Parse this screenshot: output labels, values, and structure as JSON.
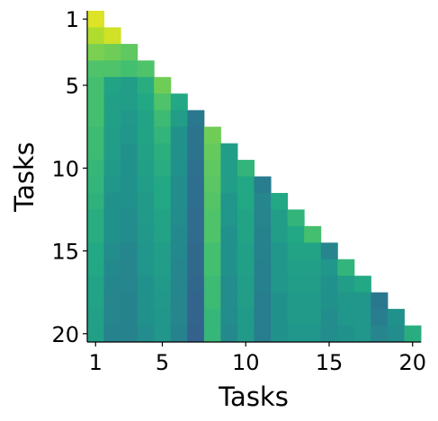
{
  "chart_data": {
    "type": "heatmap",
    "colormap": "viridis",
    "zlim": [
      0,
      1
    ],
    "x_label": "Tasks",
    "y_label": "Tasks",
    "x_categories": [
      1,
      null,
      null,
      null,
      5,
      null,
      null,
      null,
      null,
      10,
      null,
      null,
      null,
      null,
      15,
      null,
      null,
      null,
      null,
      20
    ],
    "y_categories": [
      1,
      null,
      null,
      null,
      5,
      null,
      null,
      null,
      null,
      10,
      null,
      null,
      null,
      null,
      15,
      null,
      null,
      null,
      null,
      20
    ],
    "values": [
      [
        0.95,
        null,
        null,
        null,
        null,
        null,
        null,
        null,
        null,
        null,
        null,
        null,
        null,
        null,
        null,
        null,
        null,
        null,
        null,
        null
      ],
      [
        0.88,
        0.93,
        null,
        null,
        null,
        null,
        null,
        null,
        null,
        null,
        null,
        null,
        null,
        null,
        null,
        null,
        null,
        null,
        null,
        null
      ],
      [
        0.8,
        0.78,
        0.75,
        null,
        null,
        null,
        null,
        null,
        null,
        null,
        null,
        null,
        null,
        null,
        null,
        null,
        null,
        null,
        null,
        null
      ],
      [
        0.72,
        0.72,
        0.7,
        0.72,
        null,
        null,
        null,
        null,
        null,
        null,
        null,
        null,
        null,
        null,
        null,
        null,
        null,
        null,
        null,
        null
      ],
      [
        0.7,
        0.58,
        0.55,
        0.62,
        0.78,
        null,
        null,
        null,
        null,
        null,
        null,
        null,
        null,
        null,
        null,
        null,
        null,
        null,
        null,
        null
      ],
      [
        0.7,
        0.56,
        0.55,
        0.6,
        0.72,
        0.6,
        null,
        null,
        null,
        null,
        null,
        null,
        null,
        null,
        null,
        null,
        null,
        null,
        null,
        null
      ],
      [
        0.7,
        0.56,
        0.53,
        0.58,
        0.68,
        0.55,
        0.4,
        null,
        null,
        null,
        null,
        null,
        null,
        null,
        null,
        null,
        null,
        null,
        null,
        null
      ],
      [
        0.68,
        0.55,
        0.52,
        0.58,
        0.65,
        0.5,
        0.38,
        0.78,
        null,
        null,
        null,
        null,
        null,
        null,
        null,
        null,
        null,
        null,
        null,
        null
      ],
      [
        0.68,
        0.55,
        0.5,
        0.57,
        0.63,
        0.5,
        0.38,
        0.76,
        0.55,
        null,
        null,
        null,
        null,
        null,
        null,
        null,
        null,
        null,
        null,
        null
      ],
      [
        0.66,
        0.54,
        0.5,
        0.56,
        0.62,
        0.5,
        0.37,
        0.75,
        0.55,
        0.65,
        null,
        null,
        null,
        null,
        null,
        null,
        null,
        null,
        null,
        null
      ],
      [
        0.65,
        0.52,
        0.5,
        0.55,
        0.6,
        0.48,
        0.36,
        0.74,
        0.55,
        0.6,
        0.42,
        null,
        null,
        null,
        null,
        null,
        null,
        null,
        null,
        null
      ],
      [
        0.64,
        0.5,
        0.5,
        0.54,
        0.6,
        0.48,
        0.36,
        0.73,
        0.52,
        0.6,
        0.45,
        0.6,
        null,
        null,
        null,
        null,
        null,
        null,
        null,
        null
      ],
      [
        0.62,
        0.5,
        0.48,
        0.54,
        0.58,
        0.48,
        0.35,
        0.72,
        0.52,
        0.58,
        0.45,
        0.55,
        0.65,
        null,
        null,
        null,
        null,
        null,
        null,
        null
      ],
      [
        0.62,
        0.5,
        0.48,
        0.53,
        0.58,
        0.47,
        0.35,
        0.72,
        0.5,
        0.58,
        0.44,
        0.55,
        0.6,
        0.7,
        null,
        null,
        null,
        null,
        null,
        null
      ],
      [
        0.6,
        0.48,
        0.46,
        0.52,
        0.55,
        0.47,
        0.34,
        0.7,
        0.5,
        0.56,
        0.44,
        0.52,
        0.58,
        0.58,
        0.45,
        null,
        null,
        null,
        null,
        null
      ],
      [
        0.6,
        0.47,
        0.45,
        0.52,
        0.55,
        0.46,
        0.34,
        0.7,
        0.5,
        0.56,
        0.43,
        0.52,
        0.56,
        0.56,
        0.52,
        0.65,
        null,
        null,
        null,
        null
      ],
      [
        0.58,
        0.46,
        0.45,
        0.5,
        0.54,
        0.46,
        0.33,
        0.68,
        0.48,
        0.55,
        0.43,
        0.52,
        0.55,
        0.55,
        0.5,
        0.55,
        0.6,
        null,
        null,
        null
      ],
      [
        0.58,
        0.45,
        0.44,
        0.5,
        0.53,
        0.45,
        0.32,
        0.68,
        0.48,
        0.55,
        0.42,
        0.5,
        0.54,
        0.54,
        0.5,
        0.52,
        0.52,
        0.4,
        null,
        null
      ],
      [
        0.56,
        0.45,
        0.44,
        0.5,
        0.52,
        0.45,
        0.32,
        0.66,
        0.48,
        0.54,
        0.42,
        0.5,
        0.54,
        0.54,
        0.48,
        0.52,
        0.52,
        0.42,
        0.5,
        null
      ],
      [
        0.56,
        0.44,
        0.44,
        0.48,
        0.52,
        0.44,
        0.31,
        0.66,
        0.47,
        0.54,
        0.42,
        0.5,
        0.52,
        0.52,
        0.48,
        0.5,
        0.52,
        0.45,
        0.48,
        0.62
      ]
    ]
  }
}
